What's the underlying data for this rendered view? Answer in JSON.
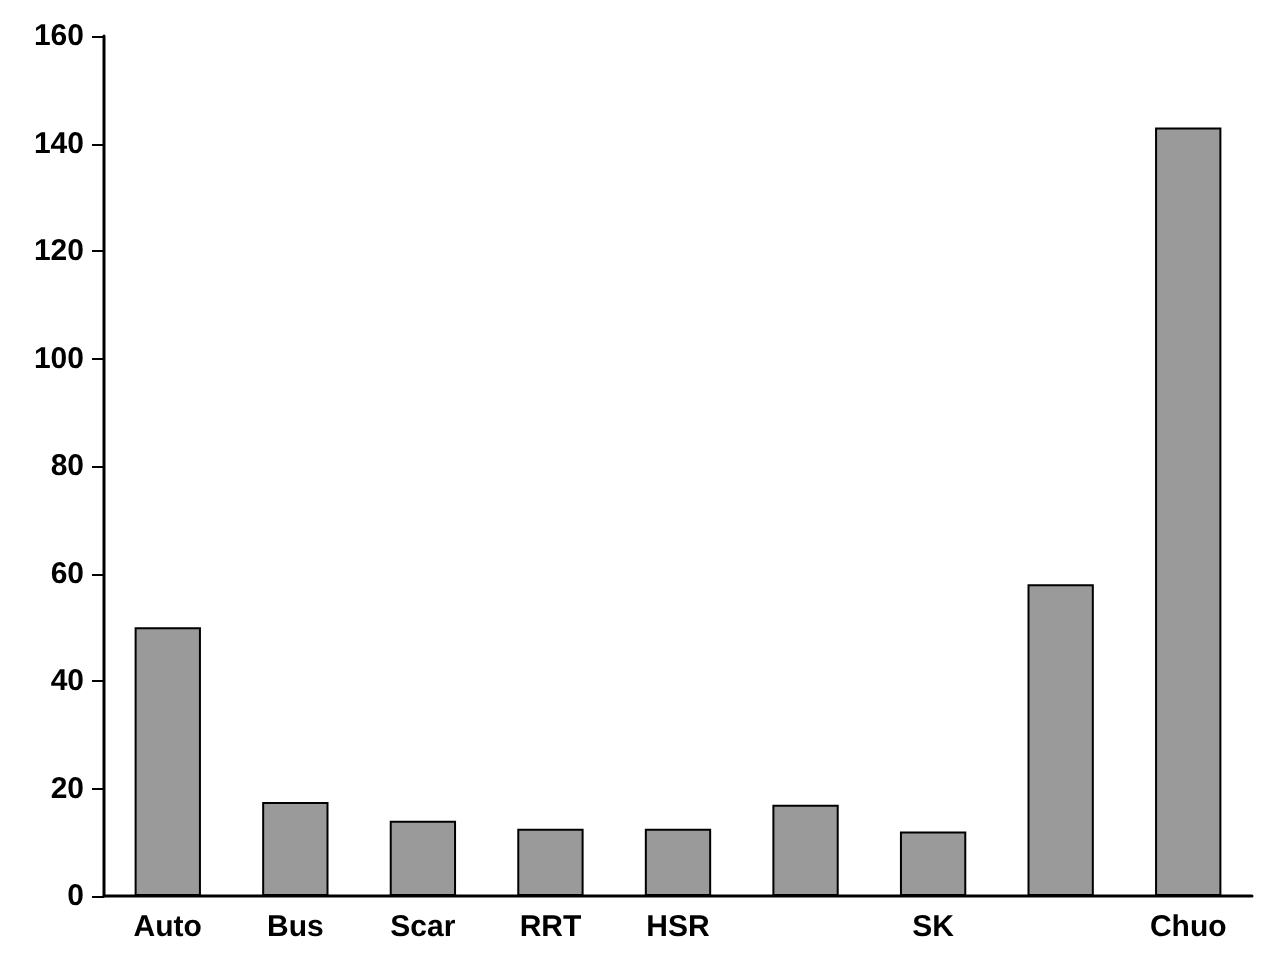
{
  "chart_data": {
    "type": "bar",
    "categories": [
      "Auto",
      "Bus",
      "Scar",
      "RRT",
      "HSR",
      null,
      "SK",
      null,
      "Chuo"
    ],
    "values": [
      50,
      17.5,
      14,
      12.5,
      12.5,
      17,
      12,
      58,
      143
    ],
    "color": "#9a9a9a",
    "ylim": [
      0,
      160
    ],
    "yticks": [
      0,
      20,
      40,
      60,
      80,
      100,
      120,
      140,
      160
    ],
    "grid": false
  }
}
